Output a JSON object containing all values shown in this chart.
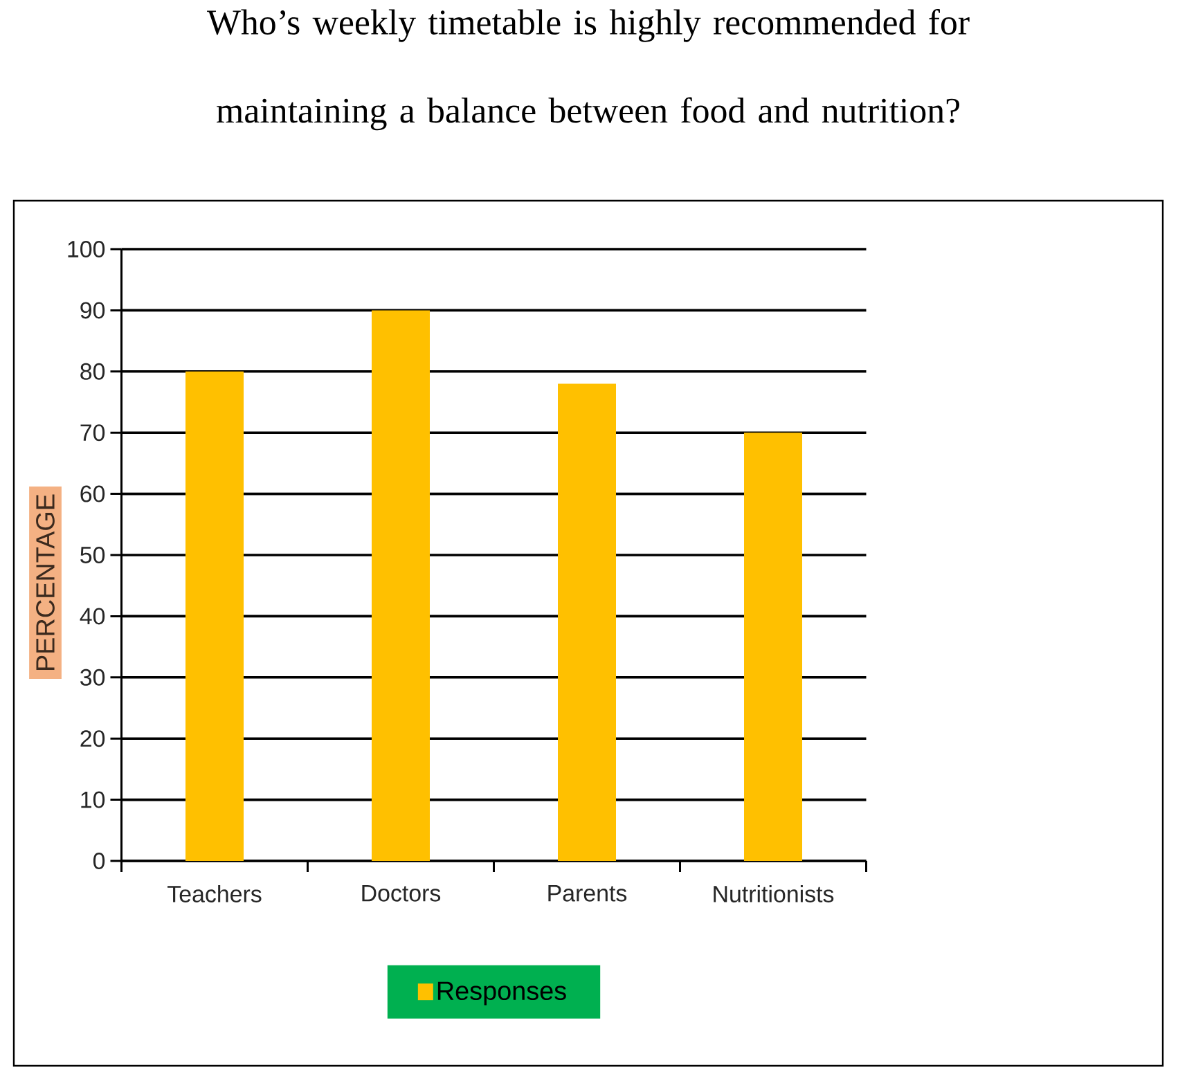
{
  "chart_data": {
    "type": "bar",
    "title": "Who’s weekly timetable is highly recommended for maintaining a balance between food and nutrition?",
    "ylabel": "PERCENTAGE",
    "categories": [
      "Teachers",
      "Doctors",
      "Parents",
      "Nutritionists"
    ],
    "series": [
      {
        "name": "Responses",
        "color": "#ffc000",
        "values": [
          80,
          90,
          78,
          70
        ]
      }
    ],
    "ylim": [
      0,
      100
    ],
    "yticks": [
      0,
      10,
      20,
      30,
      40,
      50,
      60,
      70,
      80,
      90,
      100
    ],
    "grid": "y",
    "legend": "bottom"
  }
}
